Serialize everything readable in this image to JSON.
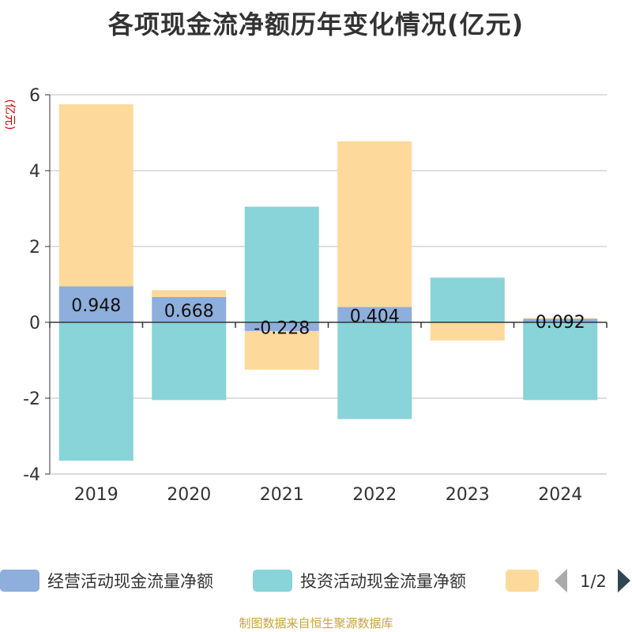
{
  "chart_data": {
    "type": "bar",
    "stacked": true,
    "title": "各项现金流净额历年变化情况(亿元)",
    "ylabel": "(亿元)",
    "xlabel": "",
    "categories": [
      "2019",
      "2020",
      "2021",
      "2022",
      "2023",
      "2024"
    ],
    "ylim": [
      -4,
      6
    ],
    "yticks": [
      -4,
      -2,
      0,
      2,
      4,
      6
    ],
    "grid": true,
    "series": [
      {
        "name": "经营活动现金流量净额",
        "color": "#8eaedb",
        "values": [
          0.948,
          0.668,
          -0.228,
          0.404,
          0.01,
          0.092
        ],
        "labels": [
          "0.948",
          "0.668",
          "-0.228",
          "0.404",
          "",
          "0.092"
        ]
      },
      {
        "name": "投资活动现金流量净额",
        "color": "#88d4d8",
        "values": [
          -3.65,
          -2.05,
          3.05,
          -2.55,
          1.17,
          -2.05
        ]
      },
      {
        "name": "",
        "color": "#fdd99b",
        "values": [
          4.8,
          0.18,
          -1.02,
          4.37,
          -0.48,
          0.02
        ]
      }
    ],
    "legend": {
      "position": "bottom",
      "page": "1/2"
    }
  },
  "footer": {
    "source": "制图数据来自恒生聚源数据库"
  }
}
